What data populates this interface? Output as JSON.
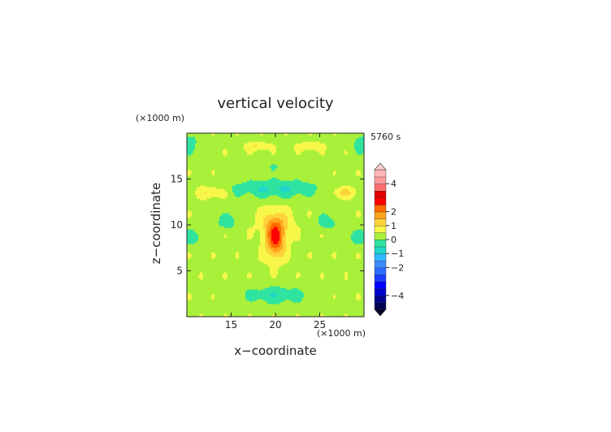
{
  "chart_data": {
    "type": "heatmap",
    "title": "vertical velocity",
    "time_label": "5760 s",
    "xlabel": "x−coordinate",
    "ylabel": "z−coordinate",
    "x_unit": "(×1000 m)",
    "y_unit": "(×1000 m)",
    "xlim": [
      10,
      30
    ],
    "ylim": [
      0,
      20
    ],
    "x_ticks": [
      15,
      20,
      25
    ],
    "y_ticks": [
      5,
      10,
      15
    ],
    "x_tick_labels": [
      "15",
      "20",
      "25"
    ],
    "y_tick_labels": [
      "5",
      "10",
      "15"
    ],
    "colorbar": {
      "levels": [
        -5,
        -4.5,
        -4,
        -3.5,
        -3,
        -2.5,
        -2,
        -1.5,
        -1,
        -0.5,
        0,
        0.5,
        1,
        1.5,
        2,
        2.5,
        3,
        3.5,
        4,
        4.5,
        5
      ],
      "colors": [
        "#000055",
        "#00008b",
        "#0000cd",
        "#0000ff",
        "#1c3cff",
        "#2a6cff",
        "#3a8cff",
        "#2fb8ff",
        "#20d6c6",
        "#2fe3a0",
        "#a8f03a",
        "#f7f74a",
        "#ffd23a",
        "#ffa21c",
        "#ff6a00",
        "#ff0000",
        "#e00000",
        "#ff6e6e",
        "#ff9a9a",
        "#ffb6b6"
      ],
      "tick_values": [
        4,
        2,
        1,
        0,
        -1,
        -2,
        -4
      ],
      "tick_labels": [
        "4",
        "2",
        "1",
        "0",
        "−1",
        "−2",
        "−4"
      ]
    },
    "field_features": [
      {
        "kind": "updraft core",
        "x": 20,
        "z": 8.5,
        "peak": 2.6
      },
      {
        "kind": "downdraft band",
        "x": 20,
        "z": 14,
        "min": -0.7
      },
      {
        "kind": "downdraft low",
        "x": 20,
        "z": 2.3,
        "min": -0.7
      }
    ]
  }
}
